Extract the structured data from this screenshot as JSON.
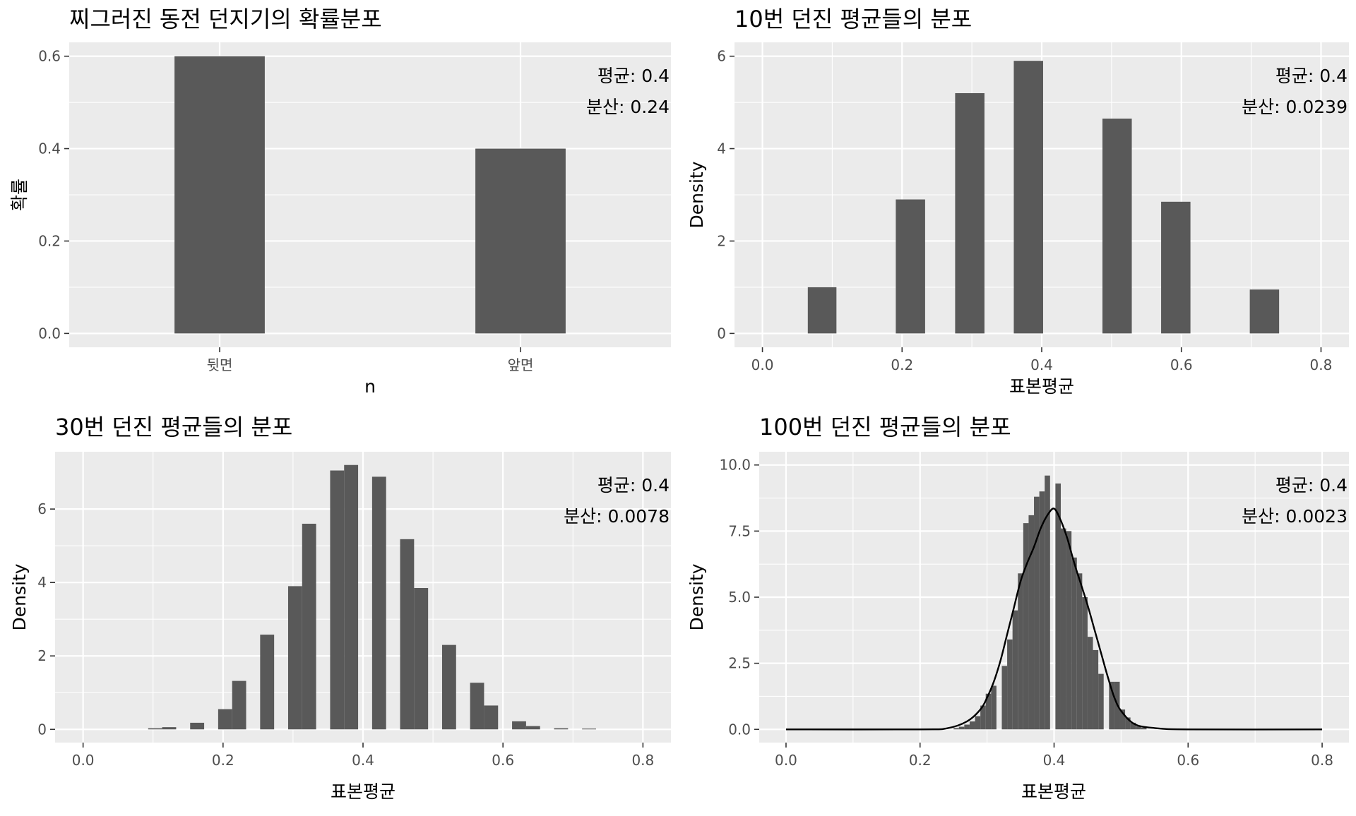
{
  "chart_data": [
    {
      "type": "bar",
      "title": "찌그러진 동전 던지기의 확률분포",
      "xlabel": "n",
      "ylabel": "확률",
      "categories": [
        "뒷면",
        "앞면"
      ],
      "values": [
        0.6,
        0.4
      ],
      "ylim": [
        -0.03,
        0.63
      ],
      "yticks": [
        0.0,
        0.2,
        0.4,
        0.6
      ],
      "ytick_labels": [
        "0.0",
        "0.2",
        "0.4",
        "0.6"
      ],
      "annotations": [
        "평균: 0.4",
        "분산: 0.24"
      ],
      "bar_color": "#595959",
      "panel_bg": "#ebebeb",
      "grid": true
    },
    {
      "type": "bar",
      "title": "10번 던진 평균들의 분포",
      "xlabel": "표본평균",
      "ylabel": "Density",
      "bins": [
        {
          "x0": 0.065,
          "x1": 0.106,
          "y": 1.0
        },
        {
          "x0": 0.191,
          "x1": 0.233,
          "y": 2.9
        },
        {
          "x0": 0.276,
          "x1": 0.318,
          "y": 5.2
        },
        {
          "x0": 0.36,
          "x1": 0.402,
          "y": 5.9
        },
        {
          "x0": 0.487,
          "x1": 0.529,
          "y": 4.65
        },
        {
          "x0": 0.571,
          "x1": 0.613,
          "y": 2.85
        },
        {
          "x0": 0.698,
          "x1": 0.74,
          "y": 0.95
        }
      ],
      "xlim": [
        -0.04,
        0.84
      ],
      "ylim": [
        -0.3,
        6.3
      ],
      "xticks": [
        0.0,
        0.2,
        0.4,
        0.6,
        0.8
      ],
      "xtick_labels": [
        "0.0",
        "0.2",
        "0.4",
        "0.6",
        "0.8"
      ],
      "yticks": [
        0,
        2,
        4,
        6
      ],
      "ytick_labels": [
        "0",
        "2",
        "4",
        "6"
      ],
      "annotations": [
        "평균: 0.4",
        "분산: 0.0239"
      ],
      "bar_color": "#595959",
      "panel_bg": "#ebebeb",
      "grid": true
    },
    {
      "type": "bar",
      "title": "30번 던진 평균들의 분포",
      "xlabel": "표본평균",
      "ylabel": "Density",
      "bins": [
        {
          "x0": 0.093,
          "x1": 0.113,
          "y": 0.03
        },
        {
          "x0": 0.113,
          "x1": 0.133,
          "y": 0.06
        },
        {
          "x0": 0.153,
          "x1": 0.173,
          "y": 0.18
        },
        {
          "x0": 0.193,
          "x1": 0.213,
          "y": 0.55
        },
        {
          "x0": 0.213,
          "x1": 0.233,
          "y": 1.32
        },
        {
          "x0": 0.253,
          "x1": 0.273,
          "y": 2.58
        },
        {
          "x0": 0.293,
          "x1": 0.313,
          "y": 3.9
        },
        {
          "x0": 0.313,
          "x1": 0.333,
          "y": 5.6
        },
        {
          "x0": 0.353,
          "x1": 0.373,
          "y": 7.05
        },
        {
          "x0": 0.373,
          "x1": 0.393,
          "y": 7.2
        },
        {
          "x0": 0.413,
          "x1": 0.433,
          "y": 6.88
        },
        {
          "x0": 0.453,
          "x1": 0.473,
          "y": 5.18
        },
        {
          "x0": 0.473,
          "x1": 0.493,
          "y": 3.85
        },
        {
          "x0": 0.513,
          "x1": 0.533,
          "y": 2.3
        },
        {
          "x0": 0.553,
          "x1": 0.573,
          "y": 1.27
        },
        {
          "x0": 0.573,
          "x1": 0.593,
          "y": 0.65
        },
        {
          "x0": 0.613,
          "x1": 0.633,
          "y": 0.22
        },
        {
          "x0": 0.633,
          "x1": 0.653,
          "y": 0.09
        },
        {
          "x0": 0.673,
          "x1": 0.693,
          "y": 0.03
        },
        {
          "x0": 0.713,
          "x1": 0.733,
          "y": 0.02
        }
      ],
      "xlim": [
        -0.04,
        0.84
      ],
      "ylim": [
        -0.36,
        7.56
      ],
      "xticks": [
        0.0,
        0.2,
        0.4,
        0.6,
        0.8
      ],
      "xtick_labels": [
        "0.0",
        "0.2",
        "0.4",
        "0.6",
        "0.8"
      ],
      "yticks": [
        0,
        2,
        4,
        6
      ],
      "ytick_labels": [
        "0",
        "2",
        "4",
        "6"
      ],
      "annotations": [
        "평균: 0.4",
        "분산: 0.0078"
      ],
      "bar_color": "#595959",
      "panel_bg": "#ebebeb",
      "grid": true
    },
    {
      "type": "bar",
      "title": "100번 던진 평균들의 분포",
      "xlabel": "표본평균",
      "ylabel": "Density",
      "bins": [
        {
          "x0": 0.25,
          "x1": 0.258,
          "y": 0.05
        },
        {
          "x0": 0.258,
          "x1": 0.266,
          "y": 0.1
        },
        {
          "x0": 0.266,
          "x1": 0.274,
          "y": 0.18
        },
        {
          "x0": 0.274,
          "x1": 0.282,
          "y": 0.3
        },
        {
          "x0": 0.282,
          "x1": 0.29,
          "y": 0.5
        },
        {
          "x0": 0.29,
          "x1": 0.298,
          "y": 0.9
        },
        {
          "x0": 0.298,
          "x1": 0.306,
          "y": 1.35
        },
        {
          "x0": 0.306,
          "x1": 0.314,
          "y": 1.65
        },
        {
          "x0": 0.322,
          "x1": 0.33,
          "y": 2.4
        },
        {
          "x0": 0.33,
          "x1": 0.338,
          "y": 3.4
        },
        {
          "x0": 0.338,
          "x1": 0.346,
          "y": 4.5
        },
        {
          "x0": 0.346,
          "x1": 0.354,
          "y": 5.9
        },
        {
          "x0": 0.354,
          "x1": 0.362,
          "y": 7.8
        },
        {
          "x0": 0.362,
          "x1": 0.37,
          "y": 8.1
        },
        {
          "x0": 0.37,
          "x1": 0.378,
          "y": 8.8
        },
        {
          "x0": 0.378,
          "x1": 0.386,
          "y": 9.0
        },
        {
          "x0": 0.386,
          "x1": 0.394,
          "y": 9.6
        },
        {
          "x0": 0.402,
          "x1": 0.41,
          "y": 9.3
        },
        {
          "x0": 0.41,
          "x1": 0.418,
          "y": 7.6
        },
        {
          "x0": 0.418,
          "x1": 0.426,
          "y": 7.5
        },
        {
          "x0": 0.426,
          "x1": 0.434,
          "y": 6.5
        },
        {
          "x0": 0.434,
          "x1": 0.442,
          "y": 5.9
        },
        {
          "x0": 0.442,
          "x1": 0.45,
          "y": 5.0
        },
        {
          "x0": 0.45,
          "x1": 0.458,
          "y": 3.5
        },
        {
          "x0": 0.458,
          "x1": 0.466,
          "y": 3.0
        },
        {
          "x0": 0.466,
          "x1": 0.474,
          "y": 2.1
        },
        {
          "x0": 0.482,
          "x1": 0.49,
          "y": 1.8
        },
        {
          "x0": 0.49,
          "x1": 0.498,
          "y": 1.8
        },
        {
          "x0": 0.498,
          "x1": 0.506,
          "y": 0.75
        },
        {
          "x0": 0.506,
          "x1": 0.514,
          "y": 0.45
        },
        {
          "x0": 0.514,
          "x1": 0.522,
          "y": 0.25
        },
        {
          "x0": 0.522,
          "x1": 0.53,
          "y": 0.12
        },
        {
          "x0": 0.53,
          "x1": 0.538,
          "y": 0.06
        }
      ],
      "density_curve": {
        "x": [
          0.0,
          0.2,
          0.24,
          0.27,
          0.29,
          0.3,
          0.31,
          0.32,
          0.33,
          0.34,
          0.35,
          0.36,
          0.37,
          0.38,
          0.39,
          0.4,
          0.41,
          0.42,
          0.43,
          0.44,
          0.45,
          0.46,
          0.47,
          0.48,
          0.49,
          0.5,
          0.52,
          0.55,
          0.6,
          0.8
        ],
        "y": [
          0.0,
          0.0,
          0.04,
          0.3,
          0.75,
          1.2,
          1.8,
          2.6,
          3.6,
          4.6,
          5.6,
          6.3,
          6.9,
          7.6,
          8.1,
          8.35,
          7.9,
          7.2,
          6.3,
          5.5,
          4.7,
          3.8,
          2.9,
          2.0,
          1.2,
          0.7,
          0.2,
          0.05,
          0.0,
          0.0
        ]
      },
      "xlim": [
        -0.04,
        0.84
      ],
      "ylim": [
        -0.5,
        10.5
      ],
      "xticks": [
        0.0,
        0.2,
        0.4,
        0.6,
        0.8
      ],
      "xtick_labels": [
        "0.0",
        "0.2",
        "0.4",
        "0.6",
        "0.8"
      ],
      "yticks": [
        0.0,
        2.5,
        5.0,
        7.5,
        10.0
      ],
      "ytick_labels": [
        "0.0",
        "2.5",
        "5.0",
        "7.5",
        "10.0"
      ],
      "annotations": [
        "평균: 0.4",
        "분산: 0.0023"
      ],
      "bar_color": "#595959",
      "panel_bg": "#ebebeb",
      "grid": true
    }
  ]
}
